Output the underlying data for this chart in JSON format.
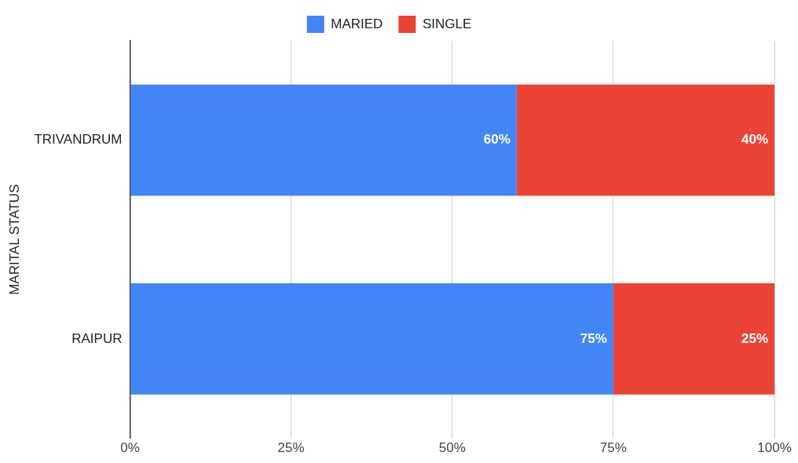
{
  "chart_data": {
    "type": "bar",
    "orientation": "horizontal",
    "stacked": true,
    "ylabel": "MARITAL STATUS",
    "categories": [
      "TRIVANDRUM",
      "RAIPUR"
    ],
    "series": [
      {
        "name": "MARIED",
        "color": "#4285f4",
        "values": [
          60,
          75
        ],
        "value_labels": [
          "60%",
          "75%"
        ]
      },
      {
        "name": "SINGLE",
        "color": "#ea4335",
        "values": [
          40,
          25
        ],
        "value_labels": [
          "40%",
          "25%"
        ]
      }
    ],
    "xlim": [
      0,
      100
    ],
    "xticks": [
      {
        "value": 0,
        "label": "0%"
      },
      {
        "value": 25,
        "label": "25%"
      },
      {
        "value": 50,
        "label": "50%"
      },
      {
        "value": 75,
        "label": "75%"
      },
      {
        "value": 100,
        "label": "100%"
      }
    ],
    "grid": "x",
    "legend": "top"
  }
}
